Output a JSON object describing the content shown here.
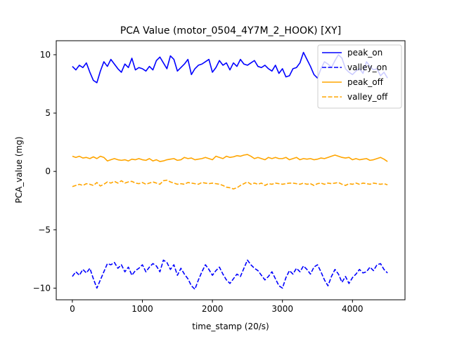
{
  "chart_data": {
    "type": "line",
    "title": "PCA Value (motor_0504_4Y7M_2_HOOK) [XY]",
    "xlabel": "time_stamp (20/s)",
    "ylabel": "PCA_value (mg)",
    "xlim": [
      -230,
      4750
    ],
    "ylim": [
      -11.0,
      11.2
    ],
    "xticks": [
      0,
      1000,
      2000,
      3000,
      4000
    ],
    "xtick_labels": [
      "0",
      "1000",
      "2000",
      "3000",
      "4000"
    ],
    "yticks": [
      -10,
      -5,
      0,
      5,
      10
    ],
    "ytick_labels": [
      "−10",
      "−5",
      "0",
      "5",
      "10"
    ],
    "grid": false,
    "legend_position": "top-right",
    "series": [
      {
        "name": "peak_on",
        "color": "#0000ff",
        "linestyle": "solid",
        "x": [
          0,
          50,
          100,
          150,
          200,
          250,
          300,
          350,
          400,
          450,
          500,
          550,
          600,
          650,
          700,
          750,
          800,
          850,
          900,
          950,
          1000,
          1050,
          1100,
          1150,
          1200,
          1250,
          1300,
          1350,
          1400,
          1450,
          1500,
          1550,
          1600,
          1650,
          1700,
          1750,
          1800,
          1850,
          1900,
          1950,
          2000,
          2050,
          2100,
          2150,
          2200,
          2250,
          2300,
          2350,
          2400,
          2450,
          2500,
          2550,
          2600,
          2650,
          2700,
          2750,
          2800,
          2850,
          2900,
          2950,
          3000,
          3050,
          3100,
          3150,
          3200,
          3250,
          3300,
          3350,
          3400,
          3450,
          3500,
          3550,
          3600,
          3650,
          3700,
          3750,
          3800,
          3850,
          3900,
          3950,
          4000,
          4050,
          4100,
          4150,
          4200,
          4250,
          4300,
          4350,
          4400,
          4450,
          4500
        ],
        "y": [
          9.0,
          8.7,
          9.1,
          8.9,
          9.3,
          8.5,
          7.8,
          7.6,
          8.6,
          9.4,
          9.0,
          9.6,
          9.2,
          8.8,
          8.5,
          9.2,
          8.9,
          9.7,
          8.7,
          8.9,
          8.8,
          8.6,
          9.0,
          8.7,
          9.5,
          9.8,
          9.3,
          8.8,
          9.9,
          9.6,
          8.6,
          8.9,
          9.2,
          9.6,
          8.3,
          8.8,
          9.1,
          9.2,
          9.4,
          9.6,
          8.5,
          8.9,
          9.5,
          9.1,
          9.3,
          8.7,
          9.3,
          9.0,
          9.6,
          9.2,
          9.1,
          9.3,
          9.5,
          9.0,
          8.9,
          9.1,
          8.8,
          8.6,
          9.1,
          8.4,
          8.8,
          8.1,
          8.2,
          8.8,
          8.9,
          9.3,
          10.2,
          9.6,
          9.0,
          8.3,
          8.0,
          8.8,
          9.4,
          9.2,
          8.9,
          9.5,
          10.0,
          9.7,
          8.8,
          8.5,
          8.3,
          8.6,
          8.8,
          8.4,
          9.4,
          9.0,
          8.7,
          8.8,
          8.2,
          8.5,
          8.0
        ]
      },
      {
        "name": "valley_on",
        "color": "#0000ff",
        "linestyle": "dashed",
        "x": [
          0,
          50,
          100,
          150,
          200,
          250,
          300,
          350,
          400,
          450,
          500,
          550,
          600,
          650,
          700,
          750,
          800,
          850,
          900,
          950,
          1000,
          1050,
          1100,
          1150,
          1200,
          1250,
          1300,
          1350,
          1400,
          1450,
          1500,
          1550,
          1600,
          1650,
          1700,
          1750,
          1800,
          1850,
          1900,
          1950,
          2000,
          2050,
          2100,
          2150,
          2200,
          2250,
          2300,
          2350,
          2400,
          2450,
          2500,
          2550,
          2600,
          2650,
          2700,
          2750,
          2800,
          2850,
          2900,
          2950,
          3000,
          3050,
          3100,
          3150,
          3200,
          3250,
          3300,
          3350,
          3400,
          3450,
          3500,
          3550,
          3600,
          3650,
          3700,
          3750,
          3800,
          3850,
          3900,
          3950,
          4000,
          4050,
          4100,
          4150,
          4200,
          4250,
          4300,
          4350,
          4400,
          4450,
          4500
        ],
        "y": [
          -9.0,
          -8.6,
          -8.9,
          -8.4,
          -8.7,
          -8.3,
          -9.2,
          -10.0,
          -9.3,
          -8.6,
          -7.9,
          -8.0,
          -7.8,
          -8.3,
          -8.0,
          -8.6,
          -8.2,
          -8.9,
          -8.5,
          -8.3,
          -8.0,
          -8.6,
          -8.2,
          -7.9,
          -8.1,
          -8.6,
          -7.6,
          -7.8,
          -8.4,
          -8.0,
          -8.9,
          -8.3,
          -8.8,
          -9.2,
          -9.8,
          -10.1,
          -9.3,
          -8.6,
          -8.0,
          -8.4,
          -8.9,
          -8.5,
          -8.2,
          -8.8,
          -9.3,
          -9.6,
          -9.2,
          -8.8,
          -9.0,
          -8.3,
          -7.6,
          -8.0,
          -8.3,
          -8.5,
          -8.9,
          -9.3,
          -9.0,
          -8.6,
          -9.2,
          -9.8,
          -10.0,
          -9.1,
          -8.5,
          -8.8,
          -8.3,
          -8.6,
          -8.1,
          -8.4,
          -8.8,
          -8.2,
          -8.0,
          -8.6,
          -9.3,
          -9.8,
          -9.0,
          -8.4,
          -8.8,
          -9.5,
          -9.0,
          -9.6,
          -9.1,
          -8.8,
          -8.4,
          -8.7,
          -8.6,
          -8.2,
          -8.5,
          -8.0,
          -7.9,
          -8.4,
          -8.7
        ]
      },
      {
        "name": "peak_off",
        "color": "#ffa500",
        "linestyle": "solid",
        "x": [
          0,
          50,
          100,
          150,
          200,
          250,
          300,
          350,
          400,
          450,
          500,
          550,
          600,
          650,
          700,
          750,
          800,
          850,
          900,
          950,
          1000,
          1050,
          1100,
          1150,
          1200,
          1250,
          1300,
          1350,
          1400,
          1450,
          1500,
          1550,
          1600,
          1650,
          1700,
          1750,
          1800,
          1850,
          1900,
          1950,
          2000,
          2050,
          2100,
          2150,
          2200,
          2250,
          2300,
          2350,
          2400,
          2450,
          2500,
          2550,
          2600,
          2650,
          2700,
          2750,
          2800,
          2850,
          2900,
          2950,
          3000,
          3050,
          3100,
          3150,
          3200,
          3250,
          3300,
          3350,
          3400,
          3450,
          3500,
          3550,
          3600,
          3650,
          3700,
          3750,
          3800,
          3850,
          3900,
          3950,
          4000,
          4050,
          4100,
          4150,
          4200,
          4250,
          4300,
          4350,
          4400,
          4450,
          4500
        ],
        "y": [
          1.3,
          1.2,
          1.3,
          1.15,
          1.2,
          1.1,
          1.25,
          1.1,
          1.3,
          1.2,
          0.9,
          1.0,
          1.1,
          1.0,
          0.95,
          1.0,
          0.9,
          1.05,
          1.0,
          1.1,
          1.0,
          0.95,
          1.1,
          0.9,
          1.0,
          0.85,
          0.9,
          1.0,
          1.05,
          1.1,
          0.95,
          1.0,
          1.2,
          1.1,
          1.15,
          1.0,
          1.05,
          1.1,
          1.2,
          1.1,
          1.0,
          1.3,
          1.2,
          1.1,
          1.3,
          1.2,
          1.25,
          1.35,
          1.3,
          1.4,
          1.45,
          1.3,
          1.1,
          1.2,
          1.1,
          1.0,
          1.2,
          1.1,
          1.2,
          1.1,
          1.1,
          1.2,
          1.0,
          1.1,
          1.2,
          1.0,
          1.1,
          1.05,
          1.1,
          1.0,
          1.05,
          1.15,
          1.1,
          1.2,
          1.3,
          1.4,
          1.3,
          1.2,
          1.15,
          1.2,
          1.0,
          1.1,
          1.0,
          1.05,
          1.1,
          0.95,
          1.0,
          1.1,
          1.2,
          1.05,
          0.85
        ]
      },
      {
        "name": "valley_off",
        "color": "#ffa500",
        "linestyle": "dashed",
        "x": [
          0,
          50,
          100,
          150,
          200,
          250,
          300,
          350,
          400,
          450,
          500,
          550,
          600,
          650,
          700,
          750,
          800,
          850,
          900,
          950,
          1000,
          1050,
          1100,
          1150,
          1200,
          1250,
          1300,
          1350,
          1400,
          1450,
          1500,
          1550,
          1600,
          1650,
          1700,
          1750,
          1800,
          1850,
          1900,
          1950,
          2000,
          2050,
          2100,
          2150,
          2200,
          2250,
          2300,
          2350,
          2400,
          2450,
          2500,
          2550,
          2600,
          2650,
          2700,
          2750,
          2800,
          2850,
          2900,
          2950,
          3000,
          3050,
          3100,
          3150,
          3200,
          3250,
          3300,
          3350,
          3400,
          3450,
          3500,
          3550,
          3600,
          3650,
          3700,
          3750,
          3800,
          3850,
          3900,
          3950,
          4000,
          4050,
          4100,
          4150,
          4200,
          4250,
          4300,
          4350,
          4400,
          4450,
          4500
        ],
        "y": [
          -1.3,
          -1.2,
          -1.1,
          -1.2,
          -1.05,
          -1.1,
          -1.2,
          -0.95,
          -1.25,
          -1.1,
          -0.9,
          -1.0,
          -0.85,
          -1.0,
          -0.8,
          -1.0,
          -0.9,
          -0.85,
          -1.0,
          -1.05,
          -0.95,
          -1.1,
          -1.0,
          -0.9,
          -1.0,
          -1.1,
          -0.8,
          -0.75,
          -0.9,
          -1.0,
          -1.1,
          -1.05,
          -1.1,
          -0.95,
          -1.0,
          -1.05,
          -1.1,
          -0.95,
          -1.0,
          -1.05,
          -1.0,
          -1.05,
          -1.1,
          -1.2,
          -1.35,
          -1.4,
          -1.5,
          -1.4,
          -1.2,
          -1.05,
          -0.9,
          -1.1,
          -1.0,
          -1.1,
          -1.0,
          -1.2,
          -1.05,
          -1.1,
          -1.0,
          -1.05,
          -1.1,
          -1.05,
          -1.0,
          -1.0,
          -1.05,
          -1.1,
          -1.0,
          -1.1,
          -1.05,
          -1.2,
          -1.05,
          -1.0,
          -1.1,
          -1.0,
          -1.05,
          -1.0,
          -0.95,
          -1.1,
          -1.2,
          -1.05,
          -1.1,
          -1.0,
          -1.1,
          -1.0,
          -1.05,
          -1.1,
          -1.0,
          -1.05,
          -1.1,
          -1.05,
          -1.15
        ]
      }
    ]
  }
}
